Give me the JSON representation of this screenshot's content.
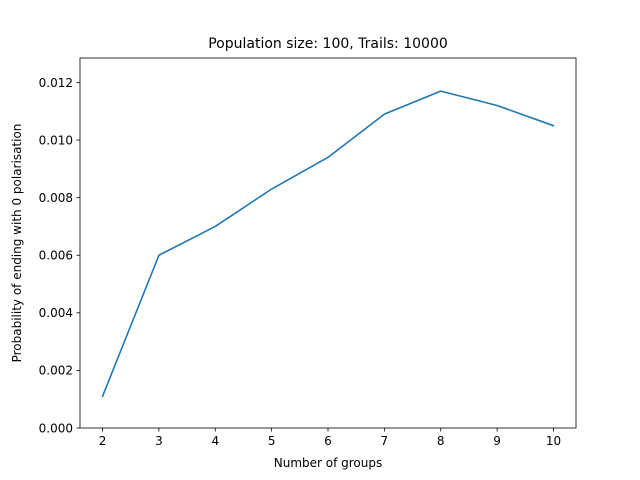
{
  "chart_data": {
    "type": "line",
    "title": "Population size: 100, Trails: 10000",
    "xlabel": "Number of groups",
    "ylabel": "Probability of ending with 0 polarisation",
    "x": [
      2,
      3,
      4,
      5,
      6,
      7,
      8,
      9,
      10
    ],
    "series": [
      {
        "values": [
          0.0011,
          0.006,
          0.007,
          0.0083,
          0.0094,
          0.0109,
          0.0117,
          0.0112,
          0.0105
        ],
        "color": "#1f77b4"
      }
    ],
    "xlim": [
      1.6,
      10.4
    ],
    "ylim": [
      0,
      0.01285
    ],
    "xticks": [
      2,
      3,
      4,
      5,
      6,
      7,
      8,
      9,
      10
    ],
    "xtick_labels": [
      "2",
      "3",
      "4",
      "5",
      "6",
      "7",
      "8",
      "9",
      "10"
    ],
    "yticks": [
      0,
      0.002,
      0.004,
      0.006,
      0.008,
      0.01,
      0.012
    ],
    "ytick_labels": [
      "0.000",
      "0.002",
      "0.004",
      "0.006",
      "0.008",
      "0.010",
      "0.012"
    ],
    "grid": false,
    "legend": false
  }
}
